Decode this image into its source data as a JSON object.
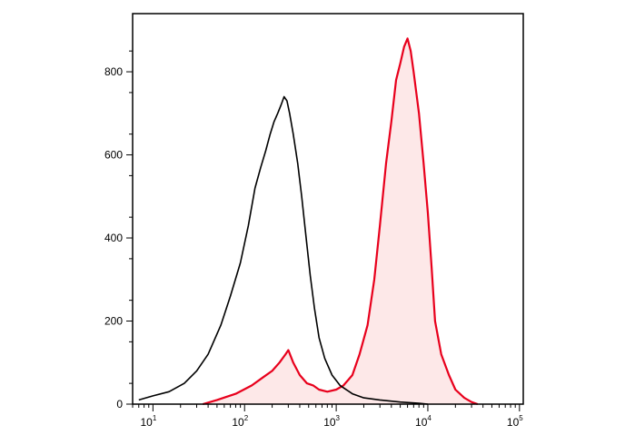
{
  "chart_data": {
    "type": "area",
    "title": "",
    "xlabel": "",
    "ylabel": "",
    "x_scale": "log",
    "xlim": [
      6,
      110000
    ],
    "ylim": [
      0,
      940
    ],
    "grid": false,
    "legend": "none",
    "x_ticks": [
      {
        "base": "10",
        "exp": "1",
        "value": 10
      },
      {
        "base": "10",
        "exp": "2",
        "value": 100
      },
      {
        "base": "10",
        "exp": "3",
        "value": 1000
      },
      {
        "base": "10",
        "exp": "4",
        "value": 10000
      },
      {
        "base": "10",
        "exp": "5",
        "value": 100000
      }
    ],
    "y_ticks": [
      {
        "label": "0",
        "value": 0
      },
      {
        "label": "200",
        "value": 200
      },
      {
        "label": "400",
        "value": 400
      },
      {
        "label": "600",
        "value": 600
      },
      {
        "label": "800",
        "value": 800
      }
    ],
    "series": [
      {
        "color": "#000000",
        "filled": false,
        "points": [
          [
            7,
            10
          ],
          [
            10,
            20
          ],
          [
            15,
            30
          ],
          [
            22,
            50
          ],
          [
            30,
            80
          ],
          [
            40,
            120
          ],
          [
            55,
            190
          ],
          [
            70,
            260
          ],
          [
            90,
            340
          ],
          [
            110,
            430
          ],
          [
            130,
            520
          ],
          [
            150,
            570
          ],
          [
            170,
            610
          ],
          [
            190,
            650
          ],
          [
            210,
            680
          ],
          [
            230,
            700
          ],
          [
            250,
            720
          ],
          [
            270,
            740
          ],
          [
            290,
            730
          ],
          [
            310,
            700
          ],
          [
            340,
            650
          ],
          [
            380,
            580
          ],
          [
            420,
            500
          ],
          [
            470,
            400
          ],
          [
            520,
            310
          ],
          [
            580,
            230
          ],
          [
            650,
            160
          ],
          [
            750,
            110
          ],
          [
            900,
            70
          ],
          [
            1100,
            45
          ],
          [
            1500,
            25
          ],
          [
            2000,
            15
          ],
          [
            3000,
            10
          ],
          [
            5000,
            5
          ],
          [
            8000,
            2
          ],
          [
            10000,
            0
          ]
        ]
      },
      {
        "color": "#e8001c",
        "fill": "#fde8e8",
        "filled": true,
        "points": [
          [
            35,
            0
          ],
          [
            50,
            10
          ],
          [
            80,
            25
          ],
          [
            120,
            45
          ],
          [
            160,
            65
          ],
          [
            200,
            80
          ],
          [
            240,
            100
          ],
          [
            280,
            120
          ],
          [
            300,
            130
          ],
          [
            340,
            100
          ],
          [
            400,
            70
          ],
          [
            480,
            50
          ],
          [
            560,
            45
          ],
          [
            650,
            35
          ],
          [
            800,
            30
          ],
          [
            1000,
            35
          ],
          [
            1200,
            45
          ],
          [
            1500,
            70
          ],
          [
            1800,
            120
          ],
          [
            2200,
            190
          ],
          [
            2600,
            300
          ],
          [
            3000,
            430
          ],
          [
            3500,
            580
          ],
          [
            4000,
            680
          ],
          [
            4500,
            780
          ],
          [
            5000,
            820
          ],
          [
            5500,
            860
          ],
          [
            6000,
            880
          ],
          [
            6500,
            850
          ],
          [
            7000,
            800
          ],
          [
            8000,
            700
          ],
          [
            9000,
            580
          ],
          [
            10000,
            460
          ],
          [
            11000,
            330
          ],
          [
            12000,
            200
          ],
          [
            14000,
            120
          ],
          [
            17000,
            70
          ],
          [
            20000,
            35
          ],
          [
            25000,
            15
          ],
          [
            30000,
            5
          ],
          [
            35000,
            0
          ]
        ]
      }
    ]
  }
}
